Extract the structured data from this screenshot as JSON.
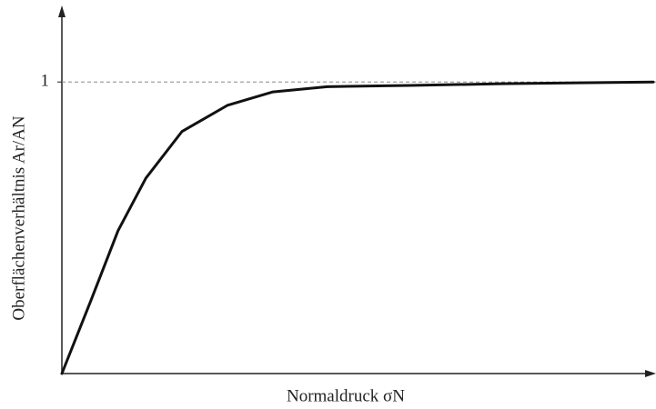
{
  "chart_data": {
    "type": "line",
    "xlabel": "Normaldruck σN",
    "ylabel": "Oberflächenverhältnis Ar/AN",
    "x": [
      0,
      0.49,
      0.95,
      1.42,
      2.03,
      2.8,
      3.57,
      4.49,
      5.88,
      7.42,
      10
    ],
    "series": [
      {
        "color": "#111111",
        "values": [
          0,
          0.25,
          0.49,
          0.67,
          0.83,
          0.92,
          0.966,
          0.984,
          0.988,
          0.994,
          1.0
        ]
      }
    ],
    "xlim": [
      0,
      10
    ],
    "ylim": [
      0,
      1.25
    ],
    "yticks": [
      1
    ],
    "grid": true
  }
}
